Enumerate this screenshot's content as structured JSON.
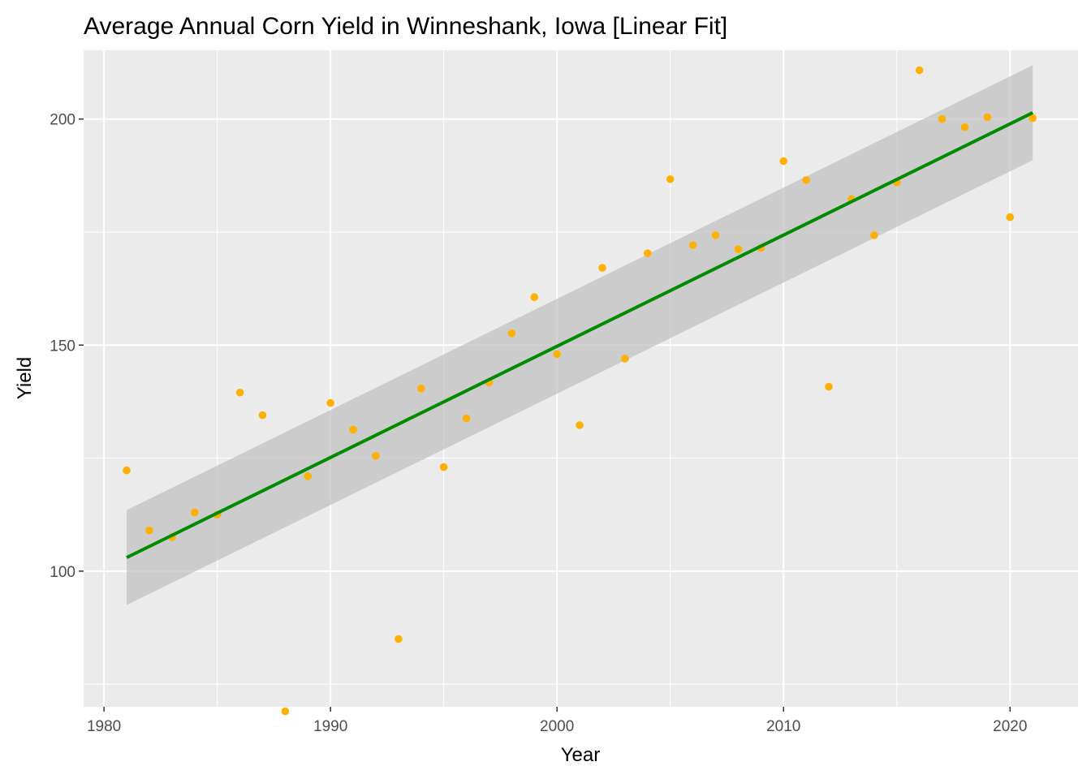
{
  "chart_data": {
    "type": "scatter",
    "title": "Average Annual Corn Yield in Winneshank, Iowa [Linear Fit]",
    "xlabel": "Year",
    "ylabel": "Yield",
    "xlim": [
      1979.1,
      2023.0
    ],
    "ylim": [
      70.0,
      215.2
    ],
    "x_ticks": [
      1980,
      1990,
      2000,
      2010,
      2020
    ],
    "y_ticks": [
      100,
      150,
      200
    ],
    "grid": true,
    "legend": "none",
    "colors": {
      "points": "#FFB000",
      "fit_line": "#008B00",
      "ribbon": "#BFBFBF",
      "panel": "#EBEBEB",
      "grid": "#FFFFFF"
    },
    "series": [
      {
        "type": "scatter",
        "x": [
          1981,
          1982,
          1983,
          1984,
          1985,
          1986,
          1987,
          1988,
          1989,
          1990,
          1991,
          1992,
          1993,
          1994,
          1995,
          1996,
          1997,
          1998,
          1999,
          2000,
          2001,
          2002,
          2003,
          2004,
          2005,
          2006,
          2007,
          2008,
          2009,
          2010,
          2011,
          2012,
          2013,
          2014,
          2015,
          2016,
          2017,
          2018,
          2019,
          2020,
          2021
        ],
        "y": [
          122.3,
          109.0,
          107.5,
          113.0,
          112.5,
          139.5,
          134.5,
          69.0,
          121.0,
          137.2,
          131.3,
          125.5,
          85.0,
          140.4,
          123.0,
          133.8,
          141.7,
          152.6,
          160.6,
          148.0,
          132.3,
          167.1,
          147.0,
          170.3,
          186.7,
          172.1,
          174.3,
          171.2,
          171.5,
          190.7,
          186.5,
          140.8,
          182.3,
          174.3,
          186.0,
          210.8,
          200.0,
          198.2,
          200.4,
          178.3,
          200.2
        ]
      }
    ],
    "fit": {
      "type": "linear",
      "x": [
        1981,
        2021
      ],
      "y": [
        103.0,
        201.4
      ],
      "band_lower": [
        92.5,
        190.9
      ],
      "band_upper": [
        113.5,
        211.9
      ]
    }
  }
}
